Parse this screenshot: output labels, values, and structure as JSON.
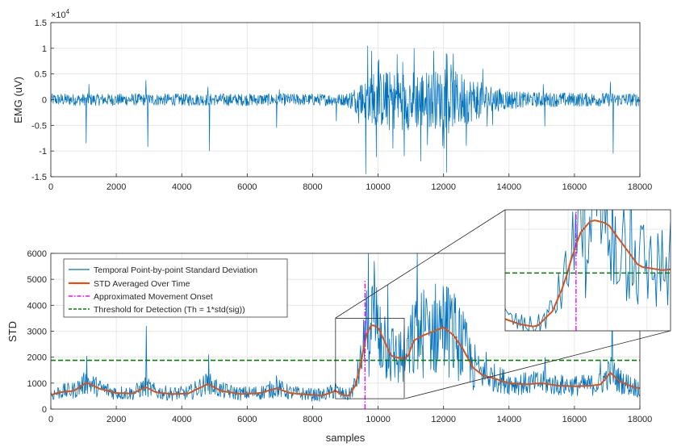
{
  "chart_data": [
    {
      "type": "line",
      "title": "",
      "xlabel": "",
      "ylabel": "EMG (uV)",
      "exponent_label": "×10",
      "exponent_power": "4",
      "xlim": [
        0,
        18000
      ],
      "ylim": [
        -1.5,
        1.5
      ],
      "xticks": [
        0,
        2000,
        4000,
        6000,
        8000,
        10000,
        12000,
        14000,
        16000,
        18000
      ],
      "yticks": [
        -1.5,
        -1,
        -0.5,
        0,
        0.5,
        1,
        1.5
      ],
      "xtick_labels": [
        "0",
        "2000",
        "4000",
        "6000",
        "8000",
        "10000",
        "12000",
        "14000",
        "16000",
        "18000"
      ],
      "ytick_labels": [
        "-1.5",
        "-1",
        "-0.5",
        "0",
        "0.5",
        "1",
        "1.5"
      ],
      "grid": true,
      "series": [
        {
          "name": "",
          "color": "#0072BD",
          "spikes": [
            {
              "x": 1080,
              "y": -0.85
            },
            {
              "x": 1160,
              "y": 0.3
            },
            {
              "x": 2960,
              "y": -0.92
            },
            {
              "x": 2900,
              "y": 0.38
            },
            {
              "x": 4850,
              "y": -1.0
            },
            {
              "x": 4800,
              "y": 0.25
            },
            {
              "x": 6900,
              "y": -0.55
            },
            {
              "x": 6980,
              "y": 0.2
            },
            {
              "x": 8720,
              "y": -0.42
            },
            {
              "x": 9620,
              "y": -1.45
            },
            {
              "x": 9680,
              "y": 1.05
            },
            {
              "x": 9800,
              "y": 0.95
            },
            {
              "x": 9950,
              "y": -1.12
            },
            {
              "x": 10450,
              "y": -0.95
            },
            {
              "x": 10800,
              "y": -1.1
            },
            {
              "x": 11100,
              "y": 1.0
            },
            {
              "x": 11300,
              "y": -1.2
            },
            {
              "x": 11700,
              "y": 0.95
            },
            {
              "x": 12100,
              "y": -1.42
            },
            {
              "x": 12300,
              "y": 0.9
            },
            {
              "x": 12700,
              "y": -0.9
            },
            {
              "x": 13200,
              "y": 0.6
            },
            {
              "x": 13500,
              "y": -0.5
            },
            {
              "x": 15100,
              "y": -0.52
            },
            {
              "x": 15050,
              "y": 0.3
            },
            {
              "x": 17180,
              "y": -1.05
            },
            {
              "x": 17100,
              "y": 0.35
            }
          ],
          "envelope": [
            [
              0,
              0.12
            ],
            [
              9000,
              0.12
            ],
            [
              9500,
              0.35
            ],
            [
              10000,
              0.55
            ],
            [
              11000,
              0.6
            ],
            [
              12500,
              0.55
            ],
            [
              13500,
              0.25
            ],
            [
              14500,
              0.15
            ],
            [
              18000,
              0.13
            ]
          ]
        }
      ]
    },
    {
      "type": "line",
      "title": "",
      "xlabel": "samples",
      "ylabel": "STD",
      "xlim": [
        0,
        18000
      ],
      "ylim": [
        0,
        6000
      ],
      "xticks": [
        0,
        2000,
        4000,
        6000,
        8000,
        10000,
        12000,
        14000,
        16000,
        18000
      ],
      "yticks": [
        0,
        1000,
        2000,
        3000,
        4000,
        5000,
        6000
      ],
      "xtick_labels": [
        "0",
        "2000",
        "4000",
        "6000",
        "8000",
        "10000",
        "12000",
        "14000",
        "16000",
        "18000"
      ],
      "ytick_labels": [
        "0",
        "1000",
        "2000",
        "3000",
        "4000",
        "5000",
        "6000"
      ],
      "grid": true,
      "legend": "top-left",
      "series": [
        {
          "name": "Temporal Point-by-point Standard Deviation",
          "color": "#0072BD",
          "style": "solid",
          "spikes": [
            {
              "x": 1100,
              "y": 2050
            },
            {
              "x": 2920,
              "y": 3200
            },
            {
              "x": 4820,
              "y": 2100
            },
            {
              "x": 6900,
              "y": 1300
            },
            {
              "x": 8700,
              "y": 1000
            },
            {
              "x": 9700,
              "y": 6000
            },
            {
              "x": 9880,
              "y": 5700
            },
            {
              "x": 10300,
              "y": 4800
            },
            {
              "x": 11200,
              "y": 6000
            },
            {
              "x": 11400,
              "y": 4600
            },
            {
              "x": 12000,
              "y": 4300
            },
            {
              "x": 12500,
              "y": 3900
            },
            {
              "x": 13300,
              "y": 2200
            },
            {
              "x": 15100,
              "y": 2000
            },
            {
              "x": 17150,
              "y": 4100
            },
            {
              "x": 16800,
              "y": 1900
            }
          ]
        },
        {
          "name": "STD Averaged Over Time",
          "color": "#D95319",
          "style": "solid",
          "points": [
            [
              0,
              550
            ],
            [
              300,
              650
            ],
            [
              700,
              700
            ],
            [
              1100,
              1020
            ],
            [
              1500,
              780
            ],
            [
              2000,
              620
            ],
            [
              2500,
              600
            ],
            [
              2900,
              850
            ],
            [
              3200,
              650
            ],
            [
              3700,
              580
            ],
            [
              4200,
              600
            ],
            [
              4800,
              970
            ],
            [
              5200,
              700
            ],
            [
              5800,
              580
            ],
            [
              6400,
              620
            ],
            [
              6900,
              800
            ],
            [
              7300,
              620
            ],
            [
              7800,
              560
            ],
            [
              8300,
              520
            ],
            [
              8700,
              700
            ],
            [
              8900,
              560
            ],
            [
              9100,
              500
            ],
            [
              9300,
              900
            ],
            [
              9450,
              1600
            ],
            [
              9550,
              2300
            ],
            [
              9650,
              2900
            ],
            [
              9800,
              3250
            ],
            [
              10000,
              3150
            ],
            [
              10200,
              2600
            ],
            [
              10400,
              2050
            ],
            [
              10700,
              1950
            ],
            [
              10900,
              2000
            ],
            [
              11100,
              2650
            ],
            [
              11400,
              2850
            ],
            [
              11700,
              3000
            ],
            [
              12000,
              3150
            ],
            [
              12300,
              2850
            ],
            [
              12600,
              2300
            ],
            [
              12900,
              1600
            ],
            [
              13200,
              1300
            ],
            [
              13500,
              1200
            ],
            [
              14000,
              1000
            ],
            [
              14500,
              950
            ],
            [
              15000,
              1000
            ],
            [
              15500,
              900
            ],
            [
              16000,
              880
            ],
            [
              16500,
              900
            ],
            [
              16800,
              950
            ],
            [
              17100,
              1400
            ],
            [
              17400,
              1050
            ],
            [
              17800,
              850
            ],
            [
              18000,
              800
            ]
          ]
        },
        {
          "name": "Approximated Movement Onset",
          "color": "#FF00FF",
          "style": "dash-dot",
          "x": 9600,
          "y_range": [
            0,
            5000
          ]
        },
        {
          "name": "Threshold for Detection (Th = 1*std(sig))",
          "color": "#008000",
          "style": "dashed",
          "y": 1880
        }
      ],
      "zoom_region": {
        "xlim": [
          8700,
          10800
        ],
        "ylim": [
          400,
          3500
        ]
      }
    }
  ]
}
